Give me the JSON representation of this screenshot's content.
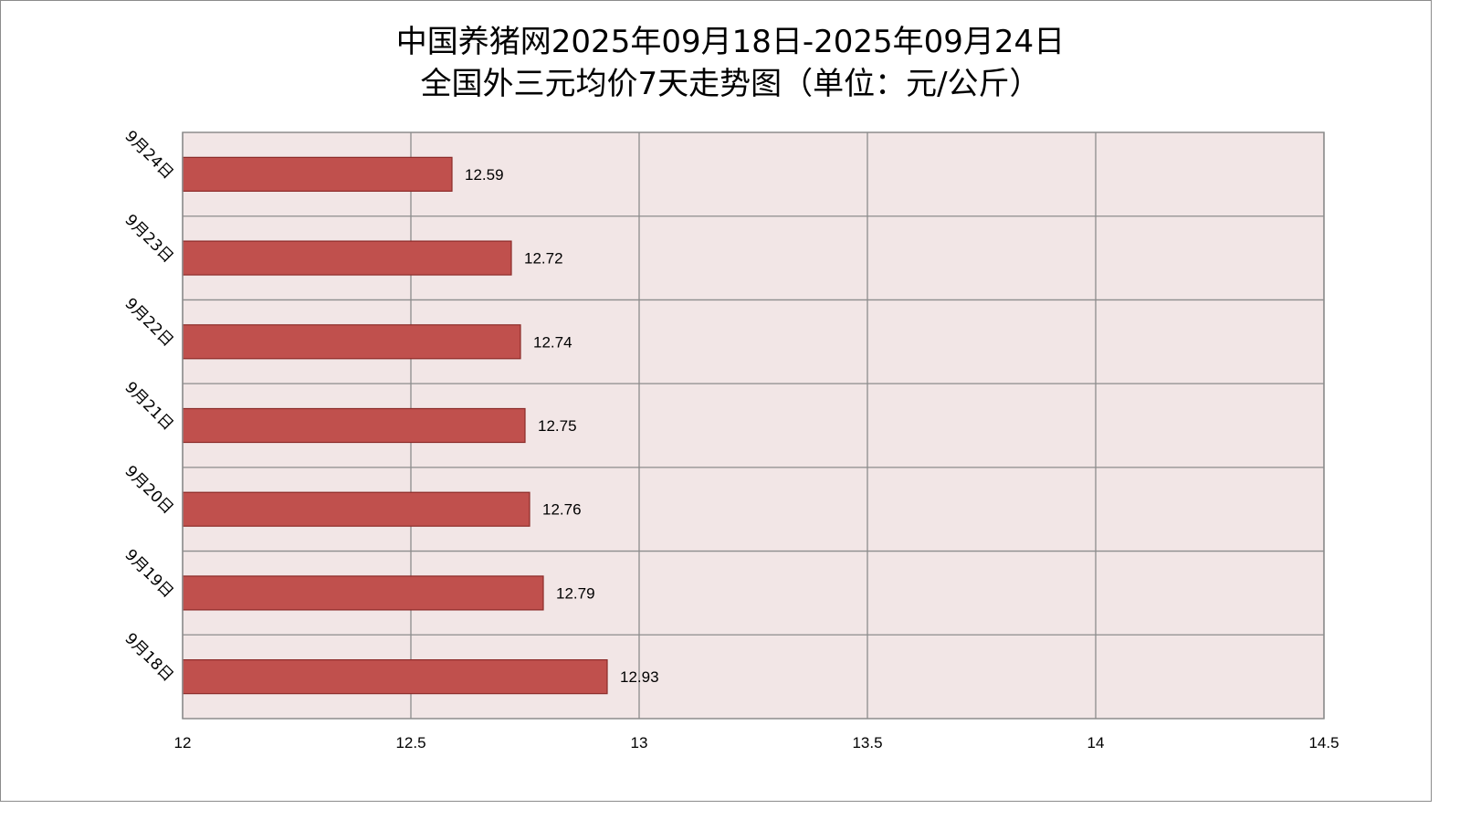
{
  "chart_data": {
    "type": "bar",
    "orientation": "horizontal",
    "title_line_1": "中国养猪网2025年09月18日-2025年09月24日",
    "title_line_2": "全国外三元均价7天走势图（单位：元/公斤）",
    "categories": [
      "9月24日",
      "9月23日",
      "9月22日",
      "9月21日",
      "9月20日",
      "9月19日",
      "9月18日"
    ],
    "values": [
      12.59,
      12.72,
      12.74,
      12.75,
      12.76,
      12.79,
      12.93
    ],
    "value_labels": [
      "12.59",
      "12.72",
      "12.74",
      "12.75",
      "12.76",
      "12.79",
      "12.93"
    ],
    "xlim": [
      12,
      14.5
    ],
    "x_ticks": [
      12,
      12.5,
      13,
      13.5,
      14,
      14.5
    ],
    "x_tick_labels": [
      "12",
      "12.5",
      "13",
      "13.5",
      "14",
      "14.5"
    ],
    "grid": true,
    "legend": "none",
    "bar_color": "#c0504d",
    "bar_edge_color": "#8c2b29",
    "plot_background": "#f2e6e6",
    "grid_color": "#8c8c8c"
  }
}
